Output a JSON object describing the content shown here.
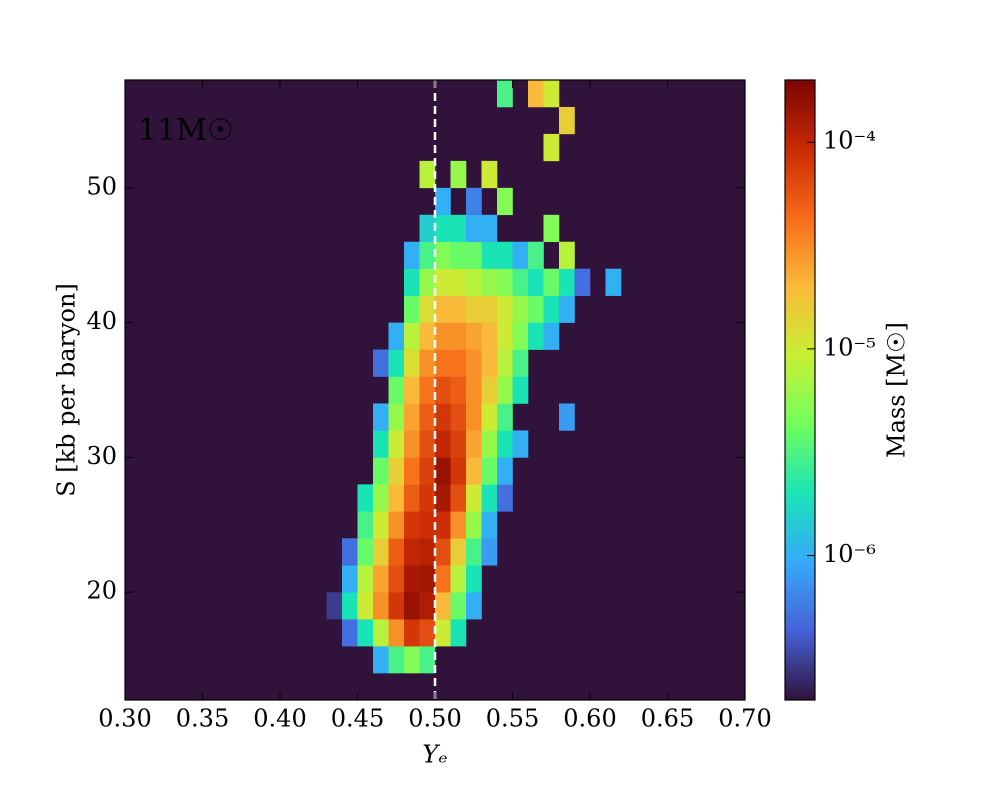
{
  "chart_data": {
    "type": "heatmap",
    "annotation": "11M☉",
    "xlabel": "Yₑ",
    "ylabel": "S [kb per baryon]",
    "colorbar_label": "Mass [M☉]",
    "xlim": [
      0.3,
      0.7
    ],
    "ylim": [
      12,
      58
    ],
    "xticks": [
      {
        "value": 0.3,
        "label": "0.30"
      },
      {
        "value": 0.35,
        "label": "0.35"
      },
      {
        "value": 0.4,
        "label": "0.40"
      },
      {
        "value": 0.45,
        "label": "0.45"
      },
      {
        "value": 0.5,
        "label": "0.50"
      },
      {
        "value": 0.55,
        "label": "0.55"
      },
      {
        "value": 0.6,
        "label": "0.60"
      },
      {
        "value": 0.65,
        "label": "0.65"
      },
      {
        "value": 0.7,
        "label": "0.70"
      }
    ],
    "yticks": [
      20,
      30,
      40,
      50
    ],
    "clim": [
      2e-07,
      0.0002
    ],
    "log_color": true,
    "cticks": [
      {
        "value": 1e-06,
        "label": "10⁻⁶"
      },
      {
        "value": 1e-05,
        "label": "10⁻⁵"
      },
      {
        "value": 0.0001,
        "label": "10⁻⁴"
      }
    ],
    "colormap": [
      "#30123b",
      "#4662d7",
      "#36aaf9",
      "#1ae4b6",
      "#72fe5e",
      "#c8ef34",
      "#faba39",
      "#f66b19",
      "#ca2a04",
      "#7a0403"
    ],
    "vline": 0.5,
    "vline_color": "#ffffff",
    "xbins": [
      0.43,
      0.44,
      0.45,
      0.46,
      0.47,
      0.48,
      0.49,
      0.5,
      0.51,
      0.52,
      0.53,
      0.54,
      0.55,
      0.56,
      0.57,
      0.58,
      0.59,
      0.6,
      0.61,
      0.62
    ],
    "ybins": [
      14,
      16,
      18,
      20,
      22,
      24,
      26,
      28,
      30,
      32,
      34,
      36,
      38,
      40,
      42,
      44,
      46,
      48,
      50,
      52,
      54,
      56,
      58
    ],
    "z": [
      [
        null,
        null,
        null,
        1e-06,
        3e-06,
        5e-06,
        3e-06,
        null,
        null,
        null,
        null,
        null,
        null,
        null,
        null,
        null,
        null,
        null,
        null
      ],
      [
        null,
        5e-07,
        2e-06,
        8e-06,
        3e-05,
        8e-05,
        6e-05,
        1e-05,
        2e-06,
        null,
        null,
        null,
        null,
        null,
        null,
        null,
        null,
        null,
        null
      ],
      [
        3e-07,
        2e-06,
        1e-05,
        3e-05,
        8e-05,
        0.00015,
        0.00012,
        2e-05,
        4e-06,
        1e-06,
        null,
        null,
        null,
        null,
        null,
        null,
        null,
        null,
        null
      ],
      [
        null,
        1e-06,
        8e-06,
        2.5e-05,
        6e-05,
        0.00013,
        0.00014,
        4e-05,
        8e-06,
        2e-06,
        null,
        null,
        null,
        null,
        null,
        null,
        null,
        null,
        null
      ],
      [
        null,
        5e-07,
        4e-06,
        1.5e-05,
        5e-05,
        0.0001,
        0.00011,
        6e-05,
        1.5e-05,
        3e-06,
        8e-07,
        null,
        null,
        null,
        null,
        null,
        null,
        null,
        null
      ],
      [
        null,
        null,
        3e-06,
        1e-05,
        3e-05,
        8e-05,
        9e-05,
        9e-05,
        3e-05,
        6e-06,
        1e-06,
        null,
        null,
        null,
        null,
        null,
        null,
        null,
        null
      ],
      [
        null,
        null,
        2e-06,
        6e-06,
        2e-05,
        5e-05,
        8e-05,
        0.00013,
        6e-05,
        1e-05,
        2e-06,
        5e-07,
        null,
        null,
        null,
        null,
        null,
        null,
        null
      ],
      [
        null,
        null,
        null,
        4e-06,
        1.5e-05,
        4e-05,
        7e-05,
        0.00015,
        8e-05,
        2e-05,
        4e-06,
        1e-06,
        null,
        null,
        null,
        null,
        null,
        null,
        null
      ],
      [
        null,
        null,
        null,
        2e-06,
        1e-05,
        3e-05,
        6e-05,
        0.0001,
        7e-05,
        2.5e-05,
        6e-06,
        2e-06,
        1e-06,
        null,
        null,
        null,
        null,
        null,
        null
      ],
      [
        null,
        null,
        null,
        1e-06,
        6e-06,
        2.5e-05,
        5e-05,
        8e-05,
        6e-05,
        3e-05,
        1e-05,
        3e-06,
        null,
        null,
        null,
        8e-07,
        null,
        null,
        null
      ],
      [
        null,
        null,
        null,
        null,
        4e-06,
        2e-05,
        4e-05,
        6e-05,
        5e-05,
        3e-05,
        1.5e-05,
        6e-06,
        2e-06,
        null,
        null,
        null,
        null,
        null,
        null
      ],
      [
        null,
        null,
        null,
        5e-07,
        2e-06,
        1.2e-05,
        3e-05,
        4e-05,
        4e-05,
        3e-05,
        2e-05,
        8e-06,
        3e-06,
        null,
        null,
        null,
        null,
        null,
        null
      ],
      [
        null,
        null,
        null,
        null,
        1e-06,
        8e-06,
        2e-05,
        3e-05,
        3e-05,
        2.5e-05,
        2e-05,
        1e-05,
        5e-06,
        2e-06,
        1e-06,
        null,
        null,
        null,
        null
      ],
      [
        null,
        null,
        null,
        null,
        null,
        4e-06,
        1.2e-05,
        2e-05,
        2e-05,
        1.5e-05,
        1.5e-05,
        1e-05,
        6e-06,
        4e-06,
        2e-06,
        1e-06,
        null,
        null,
        null
      ],
      [
        null,
        null,
        null,
        null,
        null,
        2e-06,
        6e-06,
        1e-05,
        1e-05,
        8e-06,
        6e-06,
        5e-06,
        3e-06,
        2e-06,
        4e-06,
        2e-06,
        5e-07,
        null,
        1e-06
      ],
      [
        null,
        null,
        null,
        null,
        null,
        1e-06,
        3e-06,
        5e-06,
        4e-06,
        4e-06,
        2e-06,
        2e-06,
        1e-06,
        3e-06,
        null,
        8e-06,
        null,
        null,
        null
      ],
      [
        null,
        null,
        null,
        null,
        null,
        null,
        1.5e-06,
        2e-06,
        2e-06,
        1e-06,
        1e-06,
        null,
        null,
        null,
        5e-06,
        null,
        null,
        null,
        null
      ],
      [
        null,
        null,
        null,
        null,
        null,
        null,
        null,
        1e-06,
        null,
        6e-07,
        null,
        5e-06,
        null,
        null,
        null,
        null,
        null,
        null,
        null
      ],
      [
        null,
        null,
        null,
        null,
        null,
        null,
        8e-06,
        null,
        6e-06,
        null,
        1e-05,
        null,
        null,
        null,
        null,
        null,
        null,
        null,
        null
      ],
      [
        null,
        null,
        null,
        null,
        null,
        null,
        null,
        null,
        null,
        null,
        null,
        null,
        null,
        null,
        1e-05,
        null,
        null,
        null,
        null
      ],
      [
        null,
        null,
        null,
        null,
        null,
        null,
        null,
        null,
        null,
        null,
        null,
        null,
        null,
        null,
        null,
        1.5e-05,
        null,
        null,
        null
      ],
      [
        null,
        null,
        null,
        null,
        null,
        null,
        null,
        null,
        null,
        null,
        null,
        3e-06,
        null,
        2e-05,
        1e-05,
        null,
        null,
        null,
        null
      ]
    ]
  }
}
